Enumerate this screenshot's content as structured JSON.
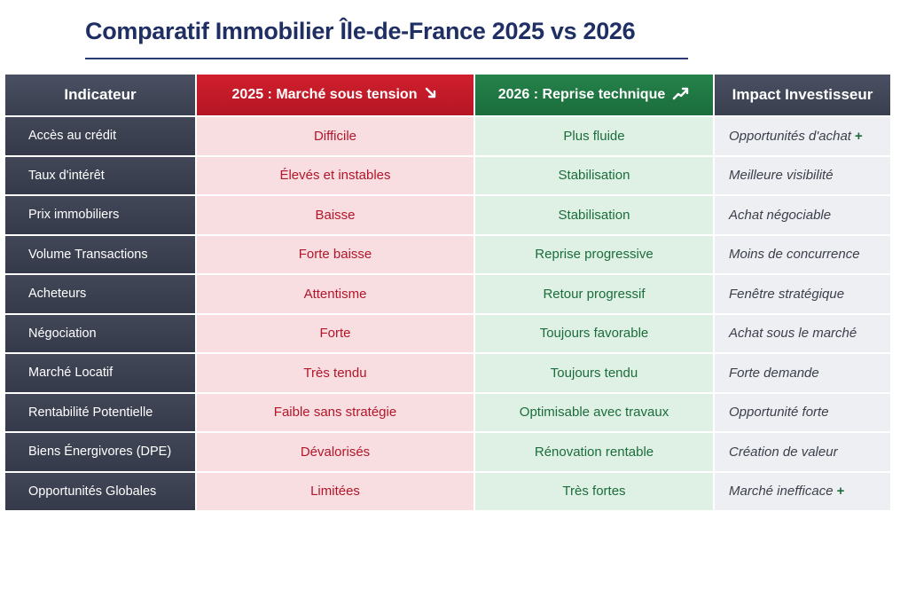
{
  "title": "Comparatif Immobilier Île-de-France 2025 vs 2026",
  "columns": {
    "indicateur": "Indicateur",
    "y2025_label": "2025 : Marché sous tension",
    "y2026_label": "2026 : Reprise technique",
    "impact": "Impact Investisseur"
  },
  "colors": {
    "title": "#1f2f63",
    "dark_header": "#3a3f4f",
    "red_header": "#c41a28",
    "green_header": "#1f7741",
    "red_cell_bg": "#f8dde1",
    "green_cell_bg": "#dff0e4",
    "grey_cell_bg": "#eeeff2"
  },
  "icons": {
    "y2025": "trend-down-icon",
    "y2026": "trend-up-icon",
    "plus": "plus-icon"
  },
  "rows": [
    {
      "indicateur": "Accès au crédit",
      "y2025": "Difficile",
      "y2026": "Plus fluide",
      "impact": "Opportunités d'achat",
      "impact_plus": "+"
    },
    {
      "indicateur": "Taux d'intérêt",
      "y2025": "Élevés et instables",
      "y2026": "Stabilisation",
      "impact": "Meilleure visibilité",
      "impact_plus": ""
    },
    {
      "indicateur": "Prix immobiliers",
      "y2025": "Baisse",
      "y2026": "Stabilisation",
      "impact": "Achat négociable",
      "impact_plus": ""
    },
    {
      "indicateur": "Volume Transactions",
      "y2025": "Forte baisse",
      "y2026": "Reprise progressive",
      "impact": "Moins de concurrence",
      "impact_plus": ""
    },
    {
      "indicateur": "Acheteurs",
      "y2025": "Attentisme",
      "y2026": "Retour progressif",
      "impact": "Fenêtre stratégique",
      "impact_plus": ""
    },
    {
      "indicateur": "Négociation",
      "y2025": "Forte",
      "y2026": "Toujours favorable",
      "impact": "Achat sous le marché",
      "impact_plus": ""
    },
    {
      "indicateur": "Marché Locatif",
      "y2025": "Très tendu",
      "y2026": "Toujours tendu",
      "impact": "Forte demande",
      "impact_plus": ""
    },
    {
      "indicateur": "Rentabilité Potentielle",
      "y2025": "Faible sans stratégie",
      "y2026": "Optimisable avec travaux",
      "impact": "Opportunité forte",
      "impact_plus": ""
    },
    {
      "indicateur": "Biens Énergivores (DPE)",
      "y2025": "Dévalorisés",
      "y2026": "Rénovation rentable",
      "impact": "Création de valeur",
      "impact_plus": ""
    },
    {
      "indicateur": "Opportunités Globales",
      "y2025": "Limitées",
      "y2026": "Très fortes",
      "impact": "Marché inefficace",
      "impact_plus": "+"
    }
  ]
}
